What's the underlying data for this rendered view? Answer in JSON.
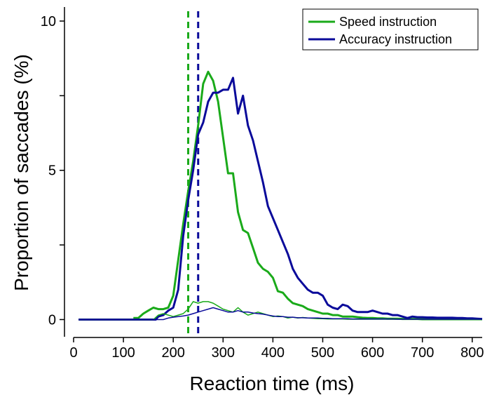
{
  "chart_data": {
    "type": "line",
    "xlabel": "Reaction time (ms)",
    "ylabel": "Proportion of saccades (%)",
    "xlim": [
      0,
      820
    ],
    "ylim": [
      -0.6,
      10.4
    ],
    "xticks": [
      0,
      100,
      200,
      300,
      400,
      500,
      600,
      700,
      800
    ],
    "xtick_labels": [
      "0",
      "100",
      "200",
      "300",
      "400",
      "500",
      "600",
      "700",
      "800"
    ],
    "yticks": [
      0,
      2.5,
      5,
      7.5,
      10
    ],
    "ytick_labels": [
      "0",
      "",
      "5",
      "",
      "10"
    ],
    "grid": false,
    "legend_position": "top-right",
    "legend": [
      "Speed instruction",
      "Accuracy instruction"
    ],
    "colors": {
      "speed": "#1aaa1a",
      "accuracy": "#0a0a9a"
    },
    "vlines": [
      {
        "x": 230,
        "series": "speed",
        "style": "dashed"
      },
      {
        "x": 250,
        "series": "accuracy",
        "style": "dashed"
      }
    ],
    "series": [
      {
        "name": "Speed instruction",
        "color": "speed",
        "width": 3,
        "x": [
          120,
          130,
          140,
          150,
          160,
          170,
          180,
          190,
          200,
          210,
          220,
          230,
          240,
          250,
          260,
          270,
          280,
          290,
          300,
          310,
          320,
          330,
          340,
          350,
          360,
          370,
          380,
          390,
          400,
          410,
          420,
          430,
          440,
          450,
          460,
          470,
          480,
          490,
          500,
          510,
          520,
          530,
          540,
          550,
          560,
          570,
          580,
          590,
          600,
          610,
          620,
          630,
          640,
          650,
          660,
          670,
          680,
          690,
          700,
          710,
          720,
          730,
          740,
          750,
          760,
          770,
          780,
          790,
          800,
          810,
          820
        ],
        "y": [
          0.05,
          0.05,
          0.2,
          0.3,
          0.4,
          0.35,
          0.35,
          0.4,
          0.8,
          2.0,
          3.2,
          4.3,
          5.3,
          6.5,
          7.9,
          8.3,
          8.0,
          7.3,
          6.1,
          4.9,
          4.9,
          3.6,
          3.0,
          2.9,
          2.4,
          1.9,
          1.7,
          1.6,
          1.4,
          0.95,
          0.9,
          0.7,
          0.55,
          0.5,
          0.45,
          0.35,
          0.3,
          0.25,
          0.2,
          0.2,
          0.15,
          0.15,
          0.1,
          0.1,
          0.1,
          0.08,
          0.06,
          0.05,
          0.05,
          0.04,
          0.04,
          0.03,
          0.03,
          0.03,
          0.02,
          0.02,
          0.02,
          0.02,
          0.01,
          0.01,
          0.01,
          0.01,
          0.01,
          0.01,
          0.01,
          0.01,
          0.01,
          0.01,
          0.01,
          0.01,
          0.01
        ]
      },
      {
        "name": "Accuracy instruction",
        "color": "accuracy",
        "width": 3,
        "x": [
          10,
          20,
          30,
          40,
          50,
          60,
          70,
          80,
          90,
          100,
          110,
          120,
          130,
          140,
          150,
          160,
          165,
          170,
          180,
          190,
          200,
          210,
          220,
          230,
          240,
          250,
          260,
          270,
          280,
          290,
          300,
          310,
          320,
          330,
          340,
          350,
          360,
          370,
          380,
          390,
          400,
          410,
          420,
          430,
          440,
          450,
          460,
          470,
          480,
          490,
          500,
          510,
          520,
          530,
          540,
          550,
          560,
          570,
          580,
          590,
          600,
          610,
          620,
          630,
          640,
          650,
          660,
          670,
          680,
          690,
          700,
          710,
          720,
          730,
          740,
          750,
          760,
          770,
          780,
          790,
          800,
          810,
          820
        ],
        "y": [
          0,
          0,
          0,
          0,
          0,
          0,
          0,
          0,
          0,
          0,
          0,
          0,
          0,
          0,
          0,
          0,
          0,
          0.1,
          0.15,
          0.3,
          0.4,
          1.0,
          2.8,
          4.0,
          5.0,
          6.2,
          6.6,
          7.3,
          7.6,
          7.6,
          7.7,
          7.7,
          8.1,
          6.9,
          7.5,
          6.5,
          6.0,
          5.3,
          4.6,
          3.8,
          3.4,
          3.0,
          2.6,
          2.2,
          1.7,
          1.4,
          1.2,
          1.0,
          0.9,
          0.9,
          0.8,
          0.5,
          0.4,
          0.35,
          0.5,
          0.45,
          0.3,
          0.25,
          0.25,
          0.25,
          0.3,
          0.25,
          0.2,
          0.2,
          0.15,
          0.15,
          0.1,
          0.05,
          0.1,
          0.08,
          0.08,
          0.07,
          0.07,
          0.06,
          0.06,
          0.06,
          0.06,
          0.05,
          0.05,
          0.04,
          0.04,
          0.03,
          0.02
        ]
      },
      {
        "name": "Speed instruction (errors)",
        "color": "speed",
        "width": 1.5,
        "x": [
          10,
          20,
          30,
          40,
          50,
          60,
          70,
          80,
          90,
          100,
          110,
          120,
          130,
          140,
          150,
          160,
          170,
          180,
          190,
          200,
          210,
          220,
          230,
          240,
          250,
          260,
          270,
          280,
          290,
          300,
          310,
          320,
          330,
          340,
          350,
          360,
          370,
          380,
          390,
          400,
          410,
          420,
          430,
          440,
          450,
          460,
          470,
          480,
          490,
          500,
          510,
          520,
          530,
          540,
          550,
          560,
          570,
          580,
          590,
          600,
          610,
          620,
          630,
          640,
          650,
          660,
          670,
          680,
          690,
          700,
          710,
          720,
          730,
          740,
          750,
          760,
          770,
          780,
          790,
          800,
          810,
          820
        ],
        "y": [
          0,
          0,
          0,
          0,
          0,
          0,
          0,
          0,
          0,
          0,
          0,
          0,
          0,
          0,
          0,
          0,
          0.15,
          0.2,
          0.15,
          0.1,
          0.15,
          0.2,
          0.35,
          0.6,
          0.55,
          0.6,
          0.6,
          0.55,
          0.45,
          0.35,
          0.3,
          0.25,
          0.4,
          0.25,
          0.15,
          0.2,
          0.25,
          0.2,
          0.15,
          0.1,
          0.12,
          0.1,
          0.05,
          0.08,
          0.05,
          0.07,
          0.05,
          0.04,
          0.03,
          0.03,
          0.02,
          0.02,
          0.02,
          0.02,
          0.01,
          0.01,
          0.01,
          0.01,
          0.01,
          0.01,
          0.01,
          0.01,
          0.01,
          0.01,
          0.01,
          0.01,
          0.01,
          0.01,
          0.01,
          0.01,
          0.01,
          0.01,
          0.01,
          0.01,
          0.01,
          0.01,
          0.01,
          0.01,
          0.01,
          0.01,
          0.01,
          0.01
        ]
      },
      {
        "name": "Accuracy instruction (errors)",
        "color": "accuracy",
        "width": 1.5,
        "x": [
          10,
          20,
          30,
          40,
          50,
          60,
          70,
          80,
          90,
          100,
          110,
          120,
          130,
          140,
          150,
          160,
          170,
          180,
          190,
          200,
          210,
          220,
          230,
          240,
          250,
          260,
          270,
          280,
          290,
          300,
          310,
          320,
          330,
          340,
          350,
          360,
          370,
          380,
          390,
          400,
          410,
          420,
          430,
          440,
          450,
          460,
          470,
          480,
          490,
          500,
          510,
          520,
          530,
          540,
          550,
          560,
          570,
          580,
          590,
          600,
          610,
          620,
          630,
          640,
          650,
          660,
          670,
          680,
          690,
          700,
          710,
          720,
          730,
          740,
          750,
          760,
          770,
          780,
          790,
          800,
          810,
          820
        ],
        "y": [
          0,
          0,
          0,
          0,
          0,
          0,
          0,
          0,
          0,
          0,
          0,
          0,
          0,
          0,
          0,
          0,
          0,
          0,
          0.05,
          0.08,
          0.1,
          0.12,
          0.15,
          0.2,
          0.25,
          0.3,
          0.35,
          0.4,
          0.35,
          0.3,
          0.25,
          0.25,
          0.3,
          0.25,
          0.25,
          0.22,
          0.2,
          0.18,
          0.15,
          0.12,
          0.1,
          0.1,
          0.08,
          0.08,
          0.06,
          0.06,
          0.05,
          0.05,
          0.05,
          0.04,
          0.04,
          0.03,
          0.03,
          0.03,
          0.03,
          0.02,
          0.02,
          0.02,
          0.02,
          0.02,
          0.02,
          0.02,
          0.02,
          0.02,
          0.01,
          0.01,
          0.01,
          0.01,
          0.01,
          0.01,
          0.01,
          0.01,
          0.01,
          0.01,
          0.01,
          0.01,
          0.01,
          0.01,
          0.01,
          0.01,
          0.01,
          0.01
        ]
      }
    ]
  }
}
